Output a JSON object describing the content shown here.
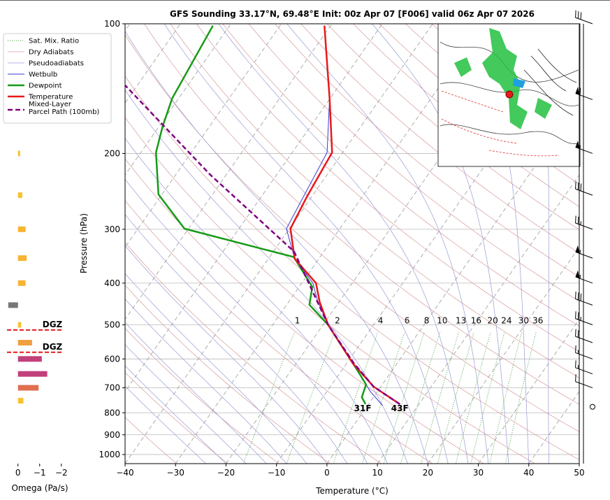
{
  "chart_data": [
    {
      "type": "skewt",
      "title": "GFS Sounding 33.17°N, 69.48°E Init: 00z Apr 07 [F006] valid 06z Apr 07 2026",
      "xlabel": "Temperature (°C)",
      "ylabel": "Pressure (hPa)",
      "xlim": [
        -40,
        50
      ],
      "ylim": [
        1050,
        100
      ],
      "log_y": true,
      "grid": true,
      "xticks": [
        {
          "value": -40,
          "label": "−40"
        },
        {
          "value": -30,
          "label": "−30"
        },
        {
          "value": -20,
          "label": "−20"
        },
        {
          "value": -10,
          "label": "−10"
        },
        0,
        10,
        20,
        30,
        40,
        50
      ],
      "yticks": [
        100,
        200,
        300,
        400,
        500,
        600,
        700,
        800,
        900,
        1000
      ],
      "reference_lines": [
        {
          "name": "Sat. Mix. Ratio",
          "kind": "mixing_ratio",
          "color": "#3a9a3a",
          "values": [
            1,
            2,
            4,
            6,
            8,
            10,
            13,
            16,
            20,
            24,
            30,
            36
          ]
        },
        {
          "name": "Dry Adiabats",
          "kind": "dry_adiabat",
          "color": "#d79a9a"
        },
        {
          "name": "Pseudoadiabats",
          "kind": "moist_adiabat",
          "color": "#9a9ad7"
        }
      ],
      "series": [
        {
          "name": "Wetbulb",
          "color": "#3b3bd0",
          "width": 1,
          "pressure": [
            770,
            714,
            615,
            500,
            440,
            400,
            351,
            299,
            242,
            199,
            149,
            101
          ],
          "values": [
            3.0,
            -1.4,
            -8.7,
            -19.0,
            -24.4,
            -27.8,
            -34.8,
            -40.6,
            -41.9,
            -43.1,
            -50.1,
            -61.2
          ]
        },
        {
          "name": "Dewpoint",
          "color": "#169b16",
          "width": 2.5,
          "surface_label": "31F",
          "pressure": [
            764,
            736,
            688,
            639,
            530,
            500,
            449,
            408,
            348,
            299,
            249,
            199,
            173,
            149,
            101
          ],
          "values": [
            -0.6,
            -2.3,
            -3.2,
            -6.8,
            -16.1,
            -19.0,
            -25.5,
            -27.4,
            -35.2,
            -60.8,
            -70.7,
            -77.0,
            -79.3,
            -81.3,
            -83.3
          ]
        },
        {
          "name": "Temperature",
          "color": "#e8191a",
          "width": 2.5,
          "surface_label": "43F",
          "pressure": [
            764,
            696,
            615,
            500,
            443,
            400,
            351,
            299,
            251,
            199,
            149,
            101
          ],
          "values": [
            6.2,
            -1.4,
            -8.7,
            -19.0,
            -23.8,
            -27.2,
            -34.8,
            -39.8,
            -41.0,
            -42.1,
            -50.1,
            -61.2
          ]
        },
        {
          "name": "Mixed-Layer\nParcel Path (100mb)",
          "color": "#800080",
          "width": 2.5,
          "dashed": true,
          "pressure": [
            764,
            696,
            615,
            500,
            338,
            224,
            139
          ],
          "values": [
            6.2,
            -1.4,
            -8.5,
            -19.0,
            -35.9,
            -63.2,
            -92.4
          ]
        }
      ],
      "wind_barbs": {
        "pressure": [
          100,
          150,
          200,
          250,
          300,
          350,
          400,
          450,
          500,
          550,
          600,
          650,
          700,
          775
        ],
        "speed": [
          30,
          60,
          55,
          35,
          25,
          55,
          55,
          30,
          25,
          20,
          15,
          15,
          10,
          0
        ]
      }
    },
    {
      "type": "bar",
      "orientation": "horizontal",
      "xlabel": "Omega (Pa/s)",
      "xlim": [
        0.7,
        -2.2
      ],
      "xticks": [
        0,
        {
          "value": -1,
          "label": "−1"
        },
        {
          "value": -2,
          "label": "−2"
        }
      ],
      "pressure": [
        200,
        250,
        300,
        350,
        400,
        450,
        500,
        550,
        600,
        650,
        700,
        750
      ],
      "values": [
        -0.1,
        -0.2,
        -0.35,
        -0.4,
        -0.35,
        0.45,
        -0.15,
        -0.65,
        -1.1,
        -1.35,
        -0.95,
        -0.25
      ],
      "colors": [
        "#f9c22e",
        "#f9c22e",
        "#f7b431",
        "#f7b431",
        "#f7b431",
        "#777777",
        "#f9c22e",
        "#f0a040",
        "#c2407c",
        "#c2407c",
        "#e07050",
        "#f9c22e"
      ],
      "dgz": [
        {
          "pressure": 514,
          "label": "DGZ"
        },
        {
          "pressure": 579,
          "label": "DGZ"
        }
      ],
      "dgz_color": "#e8191a"
    }
  ]
}
